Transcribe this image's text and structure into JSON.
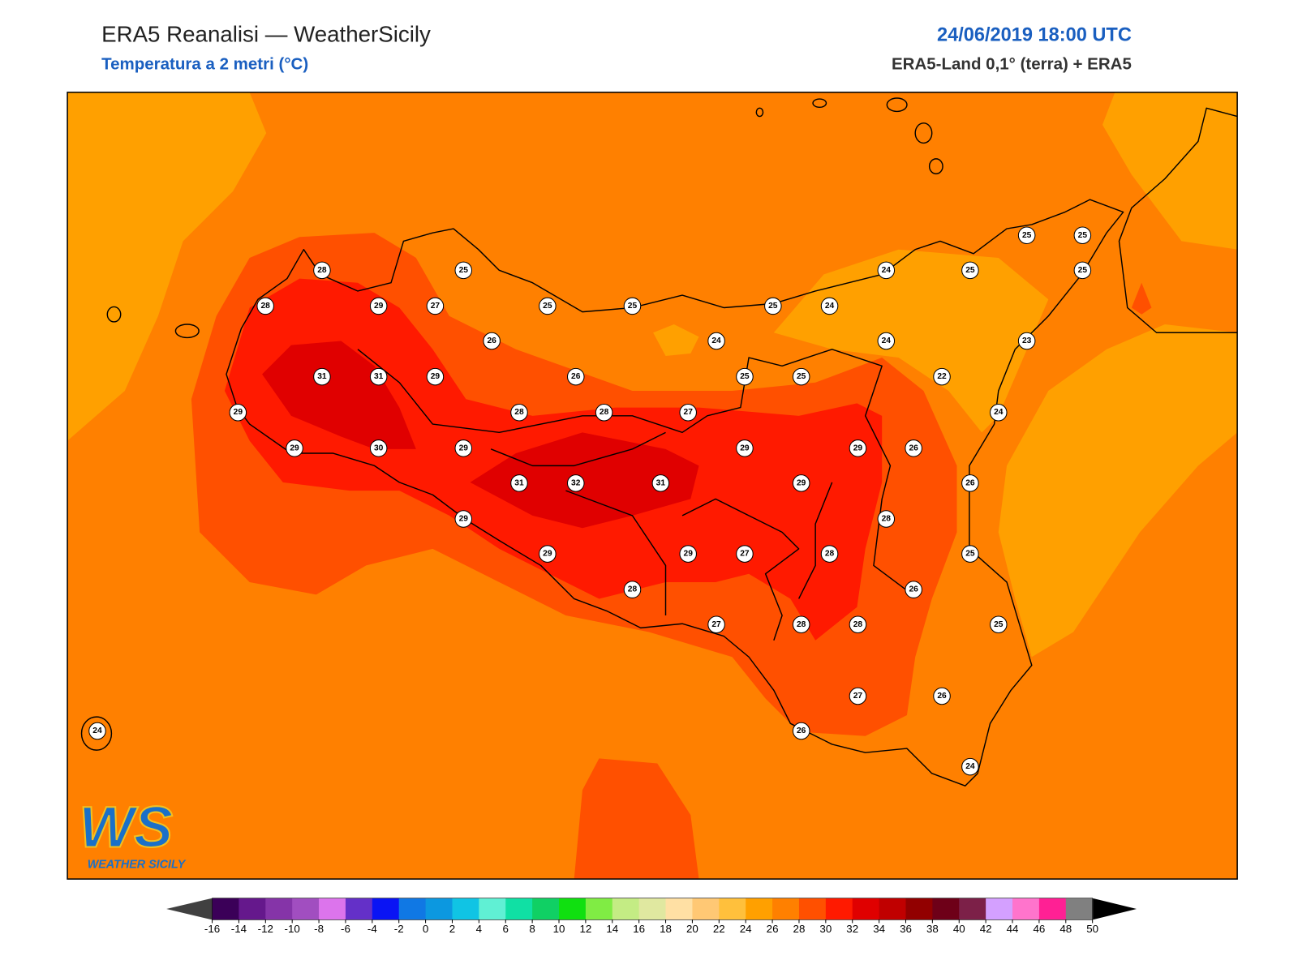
{
  "header": {
    "title": "ERA5 Reanalisi — WeatherSicily",
    "subtitle": "Temperatura a 2 metri (°C)",
    "datetime": "24/06/2019 18:00 UTC",
    "source": "ERA5-Land 0,1° (terra) + ERA5"
  },
  "map": {
    "stations": [
      28,
      25,
      28,
      29,
      27,
      25,
      25,
      26,
      24,
      25,
      24,
      24,
      25,
      25,
      25,
      25,
      24,
      23,
      31,
      31,
      29,
      26,
      25,
      25,
      22,
      29,
      28,
      28,
      27,
      24,
      29,
      30,
      29,
      29,
      29,
      26,
      31,
      32,
      31,
      29,
      26,
      29,
      28,
      29,
      29,
      27,
      28,
      25,
      28,
      26,
      27,
      28,
      28,
      25,
      27,
      26,
      26,
      24,
      24
    ]
  },
  "logo": {
    "mark": "WS",
    "text": "WEATHER SICILY"
  },
  "colorbar": {
    "ticks": [
      -16,
      -14,
      -12,
      -10,
      -8,
      -6,
      -4,
      -2,
      0,
      2,
      4,
      6,
      8,
      10,
      12,
      14,
      16,
      18,
      20,
      22,
      24,
      26,
      28,
      30,
      32,
      34,
      36,
      38,
      40,
      42,
      44,
      46,
      48,
      50
    ],
    "colors": [
      "#3b0058",
      "#65188c",
      "#8534a8",
      "#a14ec0",
      "#dc74ec",
      "#6430c8",
      "#0a14f4",
      "#1078e4",
      "#0c98e0",
      "#10c4e4",
      "#60f0d4",
      "#10e0a4",
      "#10d064",
      "#10e010",
      "#80ec44",
      "#c4ec84",
      "#e0e8a0",
      "#ffe0a4",
      "#ffc874",
      "#ffc03c",
      "#ffa000",
      "#ff8000",
      "#ff5000",
      "#ff1a00",
      "#e00000",
      "#c00000",
      "#920000",
      "#6e0018",
      "#7c2048",
      "#d4a0ff",
      "#ff74cc",
      "#ff2094",
      "#808080",
      "#383838"
    ],
    "under_color": "#404040",
    "over_color": "#000000"
  }
}
